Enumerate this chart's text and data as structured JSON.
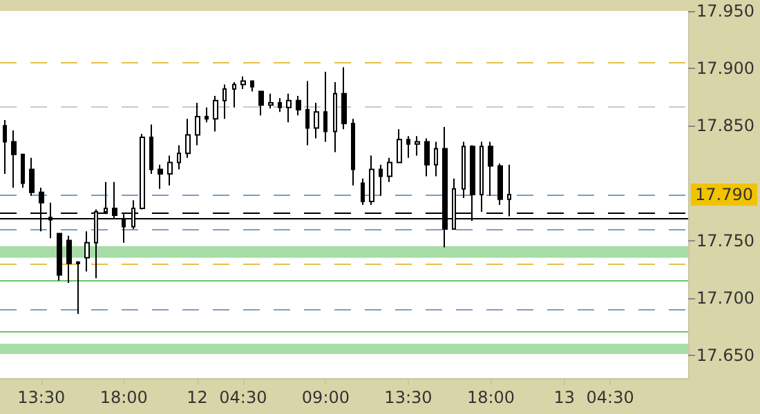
{
  "chart_data": {
    "type": "candlestick",
    "categories": [
      null,
      null,
      null,
      null,
      "13:30",
      null,
      null,
      null,
      null,
      null,
      null,
      null,
      null,
      "18:00",
      null,
      null,
      null,
      null,
      null,
      null,
      null,
      "12",
      null,
      null,
      null,
      null,
      "04:30",
      null,
      null,
      null,
      null,
      null,
      null,
      null,
      null,
      "09:00",
      null,
      null,
      null,
      null,
      null,
      null,
      null,
      null,
      "13:30",
      null,
      null,
      null,
      null,
      null,
      null,
      null,
      null,
      "18:00",
      null,
      null,
      null,
      null,
      null,
      null,
      null,
      "13",
      null,
      null,
      null,
      null,
      "04:30",
      null,
      null,
      null,
      null,
      null,
      null,
      null,
      null
    ],
    "ohlc": [
      [
        17.85,
        17.855,
        17.808,
        17.836
      ],
      [
        17.836,
        17.846,
        17.796,
        17.825
      ],
      [
        17.825,
        17.825,
        17.796,
        17.8
      ],
      [
        17.812,
        17.822,
        17.789,
        17.792
      ],
      [
        17.792,
        17.796,
        17.758,
        17.783
      ],
      [
        17.77,
        17.783,
        17.752,
        17.768
      ],
      [
        17.756,
        17.756,
        17.715,
        17.72
      ],
      [
        17.75,
        17.754,
        17.713,
        17.73
      ],
      [
        17.73,
        17.732,
        17.686,
        17.731
      ],
      [
        17.735,
        17.758,
        17.723,
        17.748
      ],
      [
        17.748,
        17.777,
        17.717,
        17.775
      ],
      [
        17.775,
        17.801,
        17.773,
        17.778
      ],
      [
        17.778,
        17.801,
        17.769,
        17.772
      ],
      [
        17.768,
        17.773,
        17.748,
        17.762
      ],
      [
        17.762,
        17.785,
        17.76,
        17.778
      ],
      [
        17.778,
        17.843,
        17.777,
        17.84
      ],
      [
        17.84,
        17.851,
        17.808,
        17.812
      ],
      [
        17.812,
        17.816,
        17.795,
        17.808
      ],
      [
        17.808,
        17.824,
        17.798,
        17.818
      ],
      [
        17.818,
        17.833,
        17.812,
        17.826
      ],
      [
        17.826,
        17.856,
        17.822,
        17.842
      ],
      [
        17.842,
        17.87,
        17.833,
        17.858
      ],
      [
        17.858,
        17.866,
        17.853,
        17.856
      ],
      [
        17.856,
        17.876,
        17.845,
        17.872
      ],
      [
        17.872,
        17.886,
        17.856,
        17.882
      ],
      [
        17.882,
        17.888,
        17.866,
        17.886
      ],
      [
        17.886,
        17.893,
        17.882,
        17.889
      ],
      [
        17.889,
        17.889,
        17.88,
        17.884
      ],
      [
        17.88,
        17.88,
        17.859,
        17.868
      ],
      [
        17.868,
        17.878,
        17.865,
        17.87
      ],
      [
        17.87,
        17.874,
        17.862,
        17.866
      ],
      [
        17.866,
        17.878,
        17.853,
        17.872
      ],
      [
        17.872,
        17.876,
        17.859,
        17.864
      ],
      [
        17.864,
        17.889,
        17.833,
        17.848
      ],
      [
        17.848,
        17.87,
        17.839,
        17.862
      ],
      [
        17.862,
        17.897,
        17.836,
        17.845
      ],
      [
        17.845,
        17.888,
        17.827,
        17.878
      ],
      [
        17.878,
        17.901,
        17.847,
        17.852
      ],
      [
        17.852,
        17.856,
        17.798,
        17.812
      ],
      [
        17.8,
        17.804,
        17.781,
        17.784
      ],
      [
        17.784,
        17.824,
        17.781,
        17.812
      ],
      [
        17.812,
        17.816,
        17.789,
        17.806
      ],
      [
        17.806,
        17.822,
        17.801,
        17.818
      ],
      [
        17.818,
        17.847,
        17.818,
        17.838
      ],
      [
        17.838,
        17.841,
        17.822,
        17.834
      ],
      [
        17.834,
        17.841,
        17.824,
        17.836
      ],
      [
        17.836,
        17.839,
        17.806,
        17.816
      ],
      [
        17.816,
        17.836,
        17.806,
        17.83
      ],
      [
        17.83,
        17.849,
        17.744,
        17.76
      ],
      [
        17.76,
        17.804,
        17.76,
        17.795
      ],
      [
        17.795,
        17.836,
        17.787,
        17.832
      ],
      [
        17.832,
        17.833,
        17.767,
        17.79
      ],
      [
        17.79,
        17.836,
        17.775,
        17.832
      ],
      [
        17.832,
        17.836,
        17.789,
        17.815
      ],
      [
        17.815,
        17.817,
        17.781,
        17.786
      ],
      [
        17.786,
        17.816,
        17.771,
        17.79
      ],
      null,
      null,
      null,
      null,
      null,
      null,
      null,
      null,
      null,
      null,
      null,
      null,
      null,
      null,
      null,
      null,
      null,
      null,
      null
    ],
    "color": "#000000",
    "ylim": [
      17.63,
      17.95
    ],
    "yticks": [
      {
        "value": 17.65,
        "label": "17.650"
      },
      {
        "value": 17.7,
        "label": "17.700"
      },
      {
        "value": 17.75,
        "label": "17.750"
      },
      {
        "value": 17.85,
        "label": "17.850"
      },
      {
        "value": 17.9,
        "label": "17.900"
      },
      {
        "value": 17.95,
        "label": "17.950"
      }
    ],
    "ref_lines": [
      {
        "axis": "y",
        "value": 17.905,
        "color": "#e6c04a",
        "line_style": "dashed"
      },
      {
        "axis": "y",
        "value": 17.867,
        "color": "#c8c8c8",
        "line_style": "dashed"
      },
      {
        "axis": "y",
        "value": 17.79,
        "label": "17.790",
        "color": "#7f9cc4",
        "line_style": "dashed"
      },
      {
        "axis": "y",
        "value": 17.774,
        "color": "#000000",
        "line_style": "dashed"
      },
      {
        "axis": "y",
        "value": 17.769,
        "color": "#000000",
        "line_style": "solid"
      },
      {
        "axis": "y",
        "value": 17.76,
        "color": "#7f9cc4",
        "line_style": "dashed"
      },
      {
        "axis": "y",
        "value": 17.73,
        "color": "#e6c04a",
        "line_style": "dashed"
      },
      {
        "axis": "y",
        "value": 17.715,
        "color": "#6cc26c",
        "line_style": "solid"
      },
      {
        "axis": "y",
        "value": 17.69,
        "color": "#7f9cc4",
        "line_style": "dashed"
      },
      {
        "axis": "y",
        "value": 17.671,
        "color": "#6cc26c",
        "line_style": "solid"
      }
    ],
    "bands": [
      {
        "axis": "y",
        "from": 17.735,
        "to": 17.745,
        "color": "#a6dca6"
      },
      {
        "axis": "y",
        "from": 17.651,
        "to": 17.66,
        "color": "#a6dca6"
      }
    ],
    "grid": false
  }
}
